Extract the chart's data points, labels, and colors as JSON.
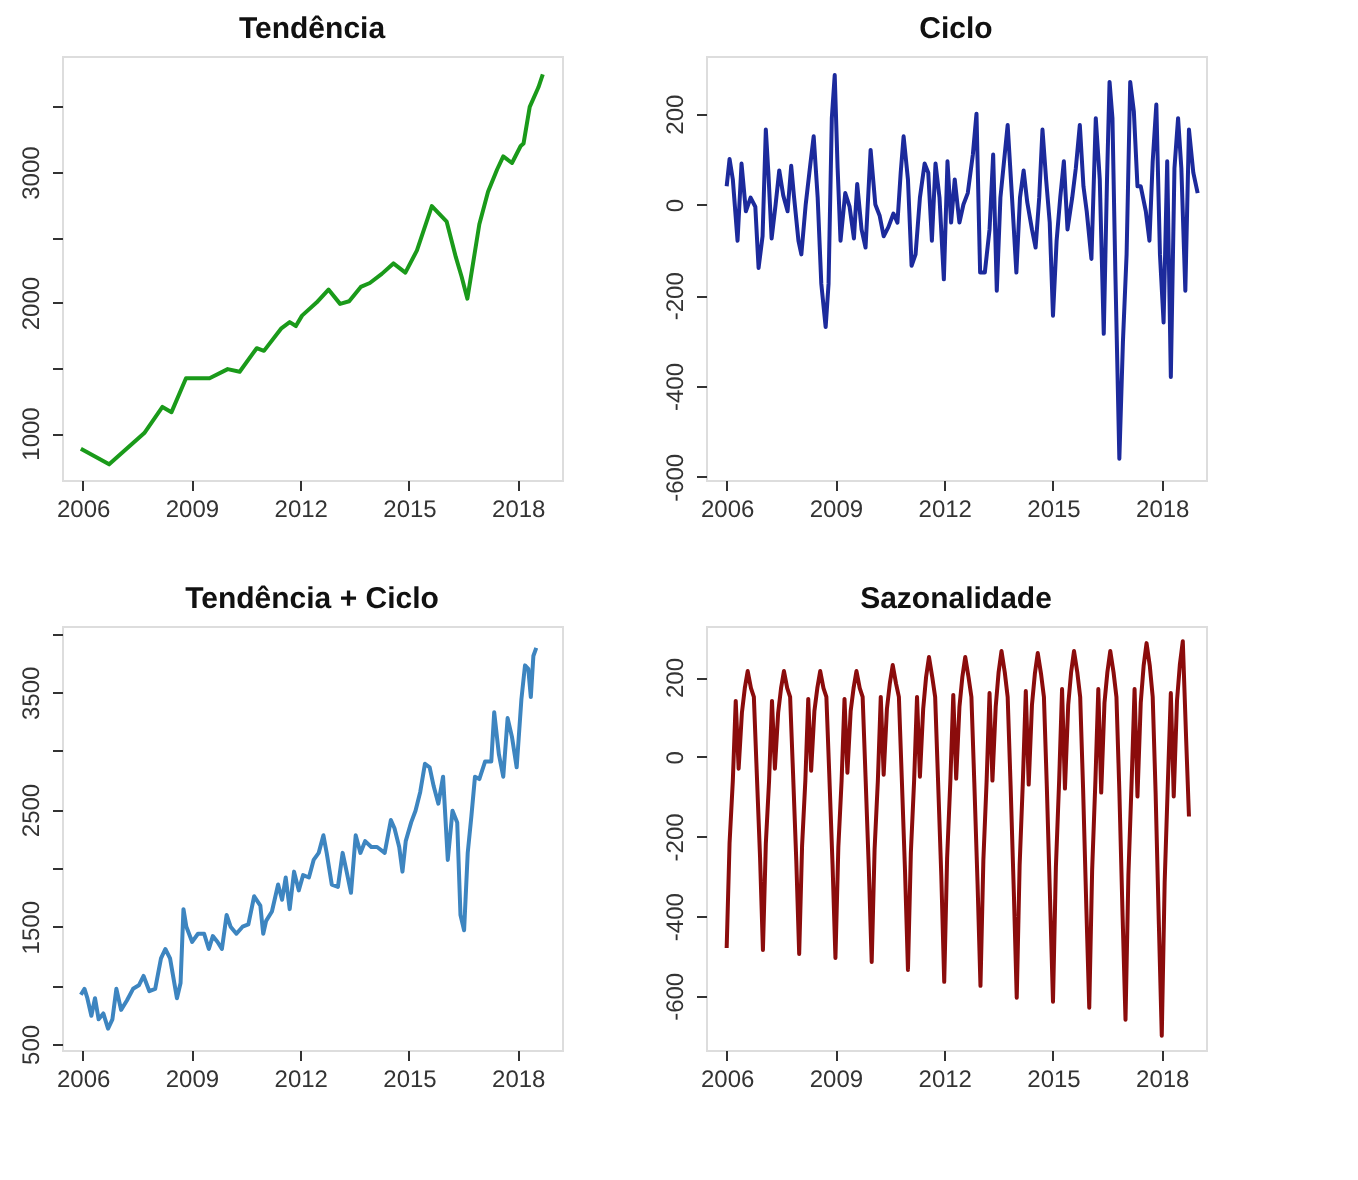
{
  "chart_data": [
    {
      "type": "line",
      "title": "Tendência",
      "xlim": [
        2005.43,
        2019.22
      ],
      "xticks": [
        2006,
        2009,
        2012,
        2015,
        2018
      ],
      "ylim": [
        640,
        3890
      ],
      "yticks": [
        1000,
        {
          "value": 1500,
          "label": null
        },
        2000,
        {
          "value": 2500,
          "label": null
        },
        3000,
        {
          "value": 3500,
          "label": null
        }
      ],
      "x": [
        2005.95,
        2006.73,
        2007.7,
        2008.2,
        2008.45,
        2008.85,
        2009.5,
        2010.0,
        2010.33,
        2010.8,
        2011.0,
        2011.47,
        2011.71,
        2011.88,
        2012.05,
        2012.45,
        2012.78,
        2013.1,
        2013.35,
        2013.67,
        2013.92,
        2014.25,
        2014.57,
        2014.9,
        2015.22,
        2015.63,
        2016.04,
        2016.29,
        2016.45,
        2016.61,
        2016.94,
        2017.18,
        2017.43,
        2017.6,
        2017.84,
        2018.08,
        2018.16,
        2018.33,
        2018.57,
        2018.69
      ],
      "series": [
        {
          "color": "#1a9a1a",
          "line_style": "solid",
          "values": [
            880,
            760,
            1000,
            1200,
            1160,
            1420,
            1420,
            1490,
            1470,
            1650,
            1630,
            1800,
            1850,
            1820,
            1900,
            2000,
            2100,
            1990,
            2010,
            2120,
            2150,
            2220,
            2300,
            2230,
            2400,
            2740,
            2620,
            2350,
            2200,
            2030,
            2600,
            2850,
            3020,
            3120,
            3070,
            3200,
            3220,
            3500,
            3650,
            3750
          ]
        }
      ]
    },
    {
      "type": "line",
      "title": "Ciclo",
      "xlim": [
        2005.43,
        2019.22
      ],
      "xticks": [
        2006,
        2009,
        2012,
        2015,
        2018
      ],
      "ylim": [
        -607,
        327
      ],
      "yticks": [
        -600,
        -400,
        -200,
        0,
        200
      ],
      "x": [
        2006.0,
        2006.08,
        2006.17,
        2006.3,
        2006.41,
        2006.53,
        2006.66,
        2006.79,
        2006.88,
        2006.99,
        2007.08,
        2007.15,
        2007.24,
        2007.35,
        2007.45,
        2007.56,
        2007.68,
        2007.78,
        2007.86,
        2007.98,
        2008.06,
        2008.18,
        2008.31,
        2008.4,
        2008.51,
        2008.61,
        2008.73,
        2008.81,
        2008.9,
        2008.98,
        2009.06,
        2009.14,
        2009.27,
        2009.39,
        2009.51,
        2009.6,
        2009.72,
        2009.83,
        2009.97,
        2010.1,
        2010.22,
        2010.33,
        2010.46,
        2010.6,
        2010.71,
        2010.8,
        2010.88,
        2011.0,
        2011.1,
        2011.21,
        2011.33,
        2011.46,
        2011.56,
        2011.66,
        2011.76,
        2011.87,
        2011.99,
        2012.09,
        2012.19,
        2012.29,
        2012.42,
        2012.53,
        2012.65,
        2012.79,
        2012.89,
        2012.99,
        2013.12,
        2013.25,
        2013.35,
        2013.45,
        2013.55,
        2013.65,
        2013.75,
        2013.87,
        2013.99,
        2014.09,
        2014.19,
        2014.29,
        2014.42,
        2014.52,
        2014.62,
        2014.71,
        2014.81,
        2014.91,
        2015.0,
        2015.1,
        2015.2,
        2015.3,
        2015.4,
        2015.53,
        2015.63,
        2015.74,
        2015.84,
        2015.93,
        2016.06,
        2016.18,
        2016.29,
        2016.4,
        2016.49,
        2016.56,
        2016.64,
        2016.72,
        2016.83,
        2016.93,
        2017.03,
        2017.13,
        2017.23,
        2017.33,
        2017.42,
        2017.56,
        2017.66,
        2017.75,
        2017.85,
        2017.95,
        2018.05,
        2018.15,
        2018.25,
        2018.35,
        2018.45,
        2018.54,
        2018.65,
        2018.75,
        2018.87,
        2018.99
      ],
      "series": [
        {
          "color": "#1c2a9c",
          "line_style": "solid",
          "values": [
            40,
            100,
            55,
            -80,
            90,
            -15,
            15,
            -5,
            -140,
            -70,
            165,
            70,
            -75,
            0,
            75,
            20,
            -15,
            85,
            15,
            -80,
            -110,
            0,
            90,
            150,
            15,
            -175,
            -270,
            -175,
            190,
            285,
            80,
            -80,
            25,
            -5,
            -75,
            45,
            -55,
            -95,
            120,
            0,
            -25,
            -70,
            -50,
            -20,
            -40,
            70,
            150,
            55,
            -135,
            -110,
            15,
            90,
            70,
            -80,
            90,
            15,
            -165,
            95,
            -40,
            55,
            -40,
            0,
            25,
            110,
            200,
            -150,
            -150,
            -55,
            110,
            -190,
            15,
            95,
            175,
            15,
            -150,
            15,
            75,
            5,
            -55,
            -95,
            15,
            165,
            55,
            -40,
            -245,
            -80,
            15,
            95,
            -55,
            15,
            80,
            175,
            40,
            -15,
            -120,
            190,
            55,
            -285,
            55,
            270,
            190,
            -150,
            -560,
            -300,
            -110,
            270,
            205,
            40,
            40,
            -15,
            -80,
            95,
            220,
            -110,
            -260,
            95,
            -380,
            80,
            190,
            80,
            -190,
            165,
            70,
            25
          ]
        }
      ]
    },
    {
      "type": "line",
      "title": "Tendência + Ciclo",
      "xlim": [
        2005.43,
        2019.22
      ],
      "xticks": [
        2006,
        2009,
        2012,
        2015,
        2018
      ],
      "ylim": [
        448,
        4066
      ],
      "yticks": [
        500,
        {
          "value": 1000,
          "label": null
        },
        1500,
        {
          "value": 2000,
          "label": null
        },
        2500,
        {
          "value": 3000,
          "label": null
        },
        3500,
        {
          "value": 4000,
          "label": null
        }
      ],
      "x": [
        2005.95,
        2006.05,
        2006.13,
        2006.24,
        2006.34,
        2006.44,
        2006.57,
        2006.7,
        2006.82,
        2006.93,
        2007.06,
        2007.22,
        2007.39,
        2007.55,
        2007.68,
        2007.84,
        2008.0,
        2008.16,
        2008.28,
        2008.41,
        2008.6,
        2008.7,
        2008.78,
        2008.86,
        2009.02,
        2009.18,
        2009.35,
        2009.48,
        2009.59,
        2009.72,
        2009.84,
        2009.97,
        2010.08,
        2010.24,
        2010.41,
        2010.57,
        2010.73,
        2010.9,
        2010.98,
        2011.06,
        2011.22,
        2011.39,
        2011.5,
        2011.6,
        2011.71,
        2011.83,
        2011.96,
        2012.08,
        2012.24,
        2012.37,
        2012.51,
        2012.64,
        2012.73,
        2012.87,
        2013.04,
        2013.17,
        2013.28,
        2013.4,
        2013.53,
        2013.66,
        2013.79,
        2013.96,
        2014.12,
        2014.33,
        2014.5,
        2014.6,
        2014.73,
        2014.82,
        2014.91,
        2015.06,
        2015.18,
        2015.31,
        2015.44,
        2015.57,
        2015.68,
        2015.81,
        2015.94,
        2016.07,
        2016.2,
        2016.33,
        2016.42,
        2016.52,
        2016.62,
        2016.72,
        2016.82,
        2016.94,
        2017.1,
        2017.27,
        2017.35,
        2017.48,
        2017.6,
        2017.72,
        2017.84,
        2017.97,
        2018.1,
        2018.2,
        2018.29,
        2018.36,
        2018.43,
        2018.51
      ],
      "series": [
        {
          "color": "#3d85c0",
          "line_style": "solid",
          "values": [
            920,
            970,
            890,
            740,
            890,
            710,
            760,
            630,
            710,
            970,
            790,
            870,
            970,
            1000,
            1080,
            950,
            970,
            1230,
            1310,
            1230,
            890,
            1020,
            1650,
            1500,
            1370,
            1440,
            1440,
            1310,
            1420,
            1370,
            1310,
            1600,
            1500,
            1440,
            1500,
            1520,
            1760,
            1680,
            1440,
            1550,
            1630,
            1860,
            1730,
            1920,
            1650,
            1970,
            1810,
            1940,
            1920,
            2070,
            2130,
            2280,
            2130,
            1860,
            1840,
            2130,
            1970,
            1790,
            2280,
            2130,
            2230,
            2180,
            2180,
            2130,
            2410,
            2340,
            2180,
            1970,
            2230,
            2390,
            2490,
            2650,
            2890,
            2860,
            2700,
            2550,
            2780,
            2070,
            2490,
            2390,
            1600,
            1470,
            2130,
            2440,
            2780,
            2760,
            2910,
            2910,
            3330,
            2970,
            2780,
            3280,
            3120,
            2860,
            3440,
            3730,
            3700,
            3460,
            3810,
            3880
          ]
        }
      ]
    },
    {
      "type": "line",
      "title": "Sazonalidade",
      "xlim": [
        2005.43,
        2019.22
      ],
      "xticks": [
        2006,
        2009,
        2012,
        2015,
        2018
      ],
      "ylim": [
        -736,
        328
      ],
      "yticks": [
        -600,
        -400,
        -200,
        0,
        200
      ],
      "x": [
        2006.0,
        2006.08,
        2006.17,
        2006.25,
        2006.33,
        2006.42,
        2006.5,
        2006.58,
        2006.67,
        2006.75,
        2006.83,
        2006.92,
        2007.0,
        2007.08,
        2007.17,
        2007.25,
        2007.33,
        2007.42,
        2007.5,
        2007.58,
        2007.67,
        2007.75,
        2007.83,
        2007.92,
        2008.0,
        2008.08,
        2008.17,
        2008.25,
        2008.33,
        2008.42,
        2008.5,
        2008.58,
        2008.67,
        2008.75,
        2008.83,
        2008.92,
        2009.0,
        2009.08,
        2009.17,
        2009.25,
        2009.33,
        2009.42,
        2009.5,
        2009.58,
        2009.67,
        2009.75,
        2009.83,
        2009.92,
        2010.0,
        2010.08,
        2010.17,
        2010.25,
        2010.33,
        2010.42,
        2010.5,
        2010.58,
        2010.67,
        2010.75,
        2010.83,
        2010.92,
        2011.0,
        2011.08,
        2011.17,
        2011.25,
        2011.33,
        2011.42,
        2011.5,
        2011.58,
        2011.67,
        2011.75,
        2011.83,
        2011.92,
        2012.0,
        2012.08,
        2012.17,
        2012.25,
        2012.33,
        2012.42,
        2012.5,
        2012.58,
        2012.67,
        2012.75,
        2012.83,
        2012.92,
        2013.0,
        2013.08,
        2013.17,
        2013.25,
        2013.33,
        2013.42,
        2013.5,
        2013.58,
        2013.67,
        2013.75,
        2013.83,
        2013.92,
        2014.0,
        2014.08,
        2014.17,
        2014.25,
        2014.33,
        2014.42,
        2014.5,
        2014.58,
        2014.67,
        2014.75,
        2014.83,
        2014.92,
        2015.0,
        2015.08,
        2015.17,
        2015.25,
        2015.33,
        2015.42,
        2015.5,
        2015.58,
        2015.67,
        2015.75,
        2015.83,
        2015.92,
        2016.0,
        2016.08,
        2016.17,
        2016.25,
        2016.33,
        2016.42,
        2016.5,
        2016.58,
        2016.67,
        2016.75,
        2016.83,
        2016.92,
        2017.0,
        2017.08,
        2017.17,
        2017.25,
        2017.33,
        2017.42,
        2017.5,
        2017.58,
        2017.67,
        2017.75,
        2017.83,
        2017.92,
        2018.0,
        2018.08,
        2018.17,
        2018.25,
        2018.33,
        2018.42,
        2018.5,
        2018.58,
        2018.67,
        2018.75
      ],
      "series": [
        {
          "color": "#8b0c0c",
          "line_style": "solid",
          "values": [
            -480,
            -216,
            -60,
            140,
            -30,
            110,
            172,
            215,
            172,
            150,
            -40,
            -250,
            -485,
            -218,
            -60,
            140,
            -30,
            110,
            172,
            215,
            172,
            150,
            -40,
            -260,
            -495,
            -223,
            -60,
            145,
            -35,
            115,
            172,
            215,
            172,
            150,
            -45,
            -270,
            -505,
            -227,
            -60,
            145,
            -40,
            115,
            172,
            215,
            172,
            150,
            -50,
            -280,
            -515,
            -232,
            -60,
            150,
            -45,
            120,
            184,
            230,
            184,
            150,
            -55,
            -290,
            -535,
            -241,
            -60,
            150,
            -50,
            120,
            200,
            250,
            200,
            150,
            -60,
            -300,
            -565,
            -254,
            -60,
            155,
            -55,
            125,
            200,
            250,
            200,
            150,
            -65,
            -320,
            -575,
            -259,
            -60,
            160,
            -60,
            125,
            212,
            265,
            212,
            150,
            -70,
            -340,
            -605,
            -272,
            -60,
            165,
            -70,
            130,
            208,
            260,
            208,
            150,
            -75,
            -360,
            -615,
            -277,
            -60,
            170,
            -80,
            130,
            212,
            265,
            212,
            150,
            -80,
            -380,
            -630,
            -284,
            -60,
            170,
            -90,
            135,
            212,
            265,
            212,
            150,
            -85,
            -400,
            -660,
            -297,
            -60,
            170,
            -100,
            135,
            228,
            285,
            228,
            150,
            -90,
            -420,
            -700,
            -315,
            -60,
            160,
            -100,
            140,
            232,
            290,
            50,
            -150
          ]
        }
      ]
    }
  ]
}
